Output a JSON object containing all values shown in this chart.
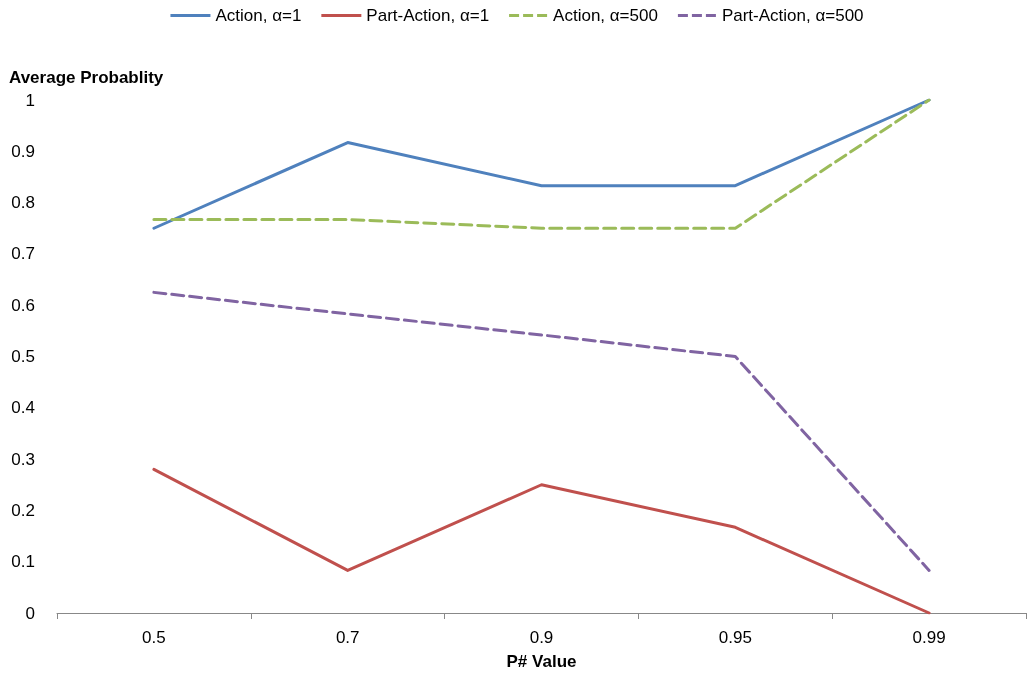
{
  "chart_data": {
    "type": "line",
    "xlabel": "P# Value",
    "ylabel": "Average Probablity",
    "categories": [
      "0.5",
      "0.7",
      "0.9",
      "0.95",
      "0.99"
    ],
    "ylim": [
      0,
      1
    ],
    "yticks": [
      0,
      0.1,
      0.2,
      0.3,
      0.4,
      0.5,
      0.6,
      0.7,
      0.8,
      0.9,
      1
    ],
    "grid": false,
    "legend": "top",
    "marker": "none",
    "series": [
      {
        "name": "Action, α=1",
        "color": "#4f81bd",
        "line_style": "solid",
        "values": [
          0.75,
          0.917,
          0.833,
          0.833,
          1
        ]
      },
      {
        "name": "Part-Action, α=1",
        "color": "#c0504d",
        "line_style": "solid",
        "values": [
          0.28,
          0.083,
          0.25,
          0.167,
          0
        ]
      },
      {
        "name": "Action, α=500",
        "color": "#9bbb59",
        "line_style": "dashed",
        "values": [
          0.767,
          0.767,
          0.75,
          0.75,
          1
        ]
      },
      {
        "name": "Part-Action, α=500",
        "color": "#8064a2",
        "line_style": "dashed",
        "values": [
          0.625,
          0.583,
          0.542,
          0.5,
          0.083
        ]
      }
    ]
  }
}
